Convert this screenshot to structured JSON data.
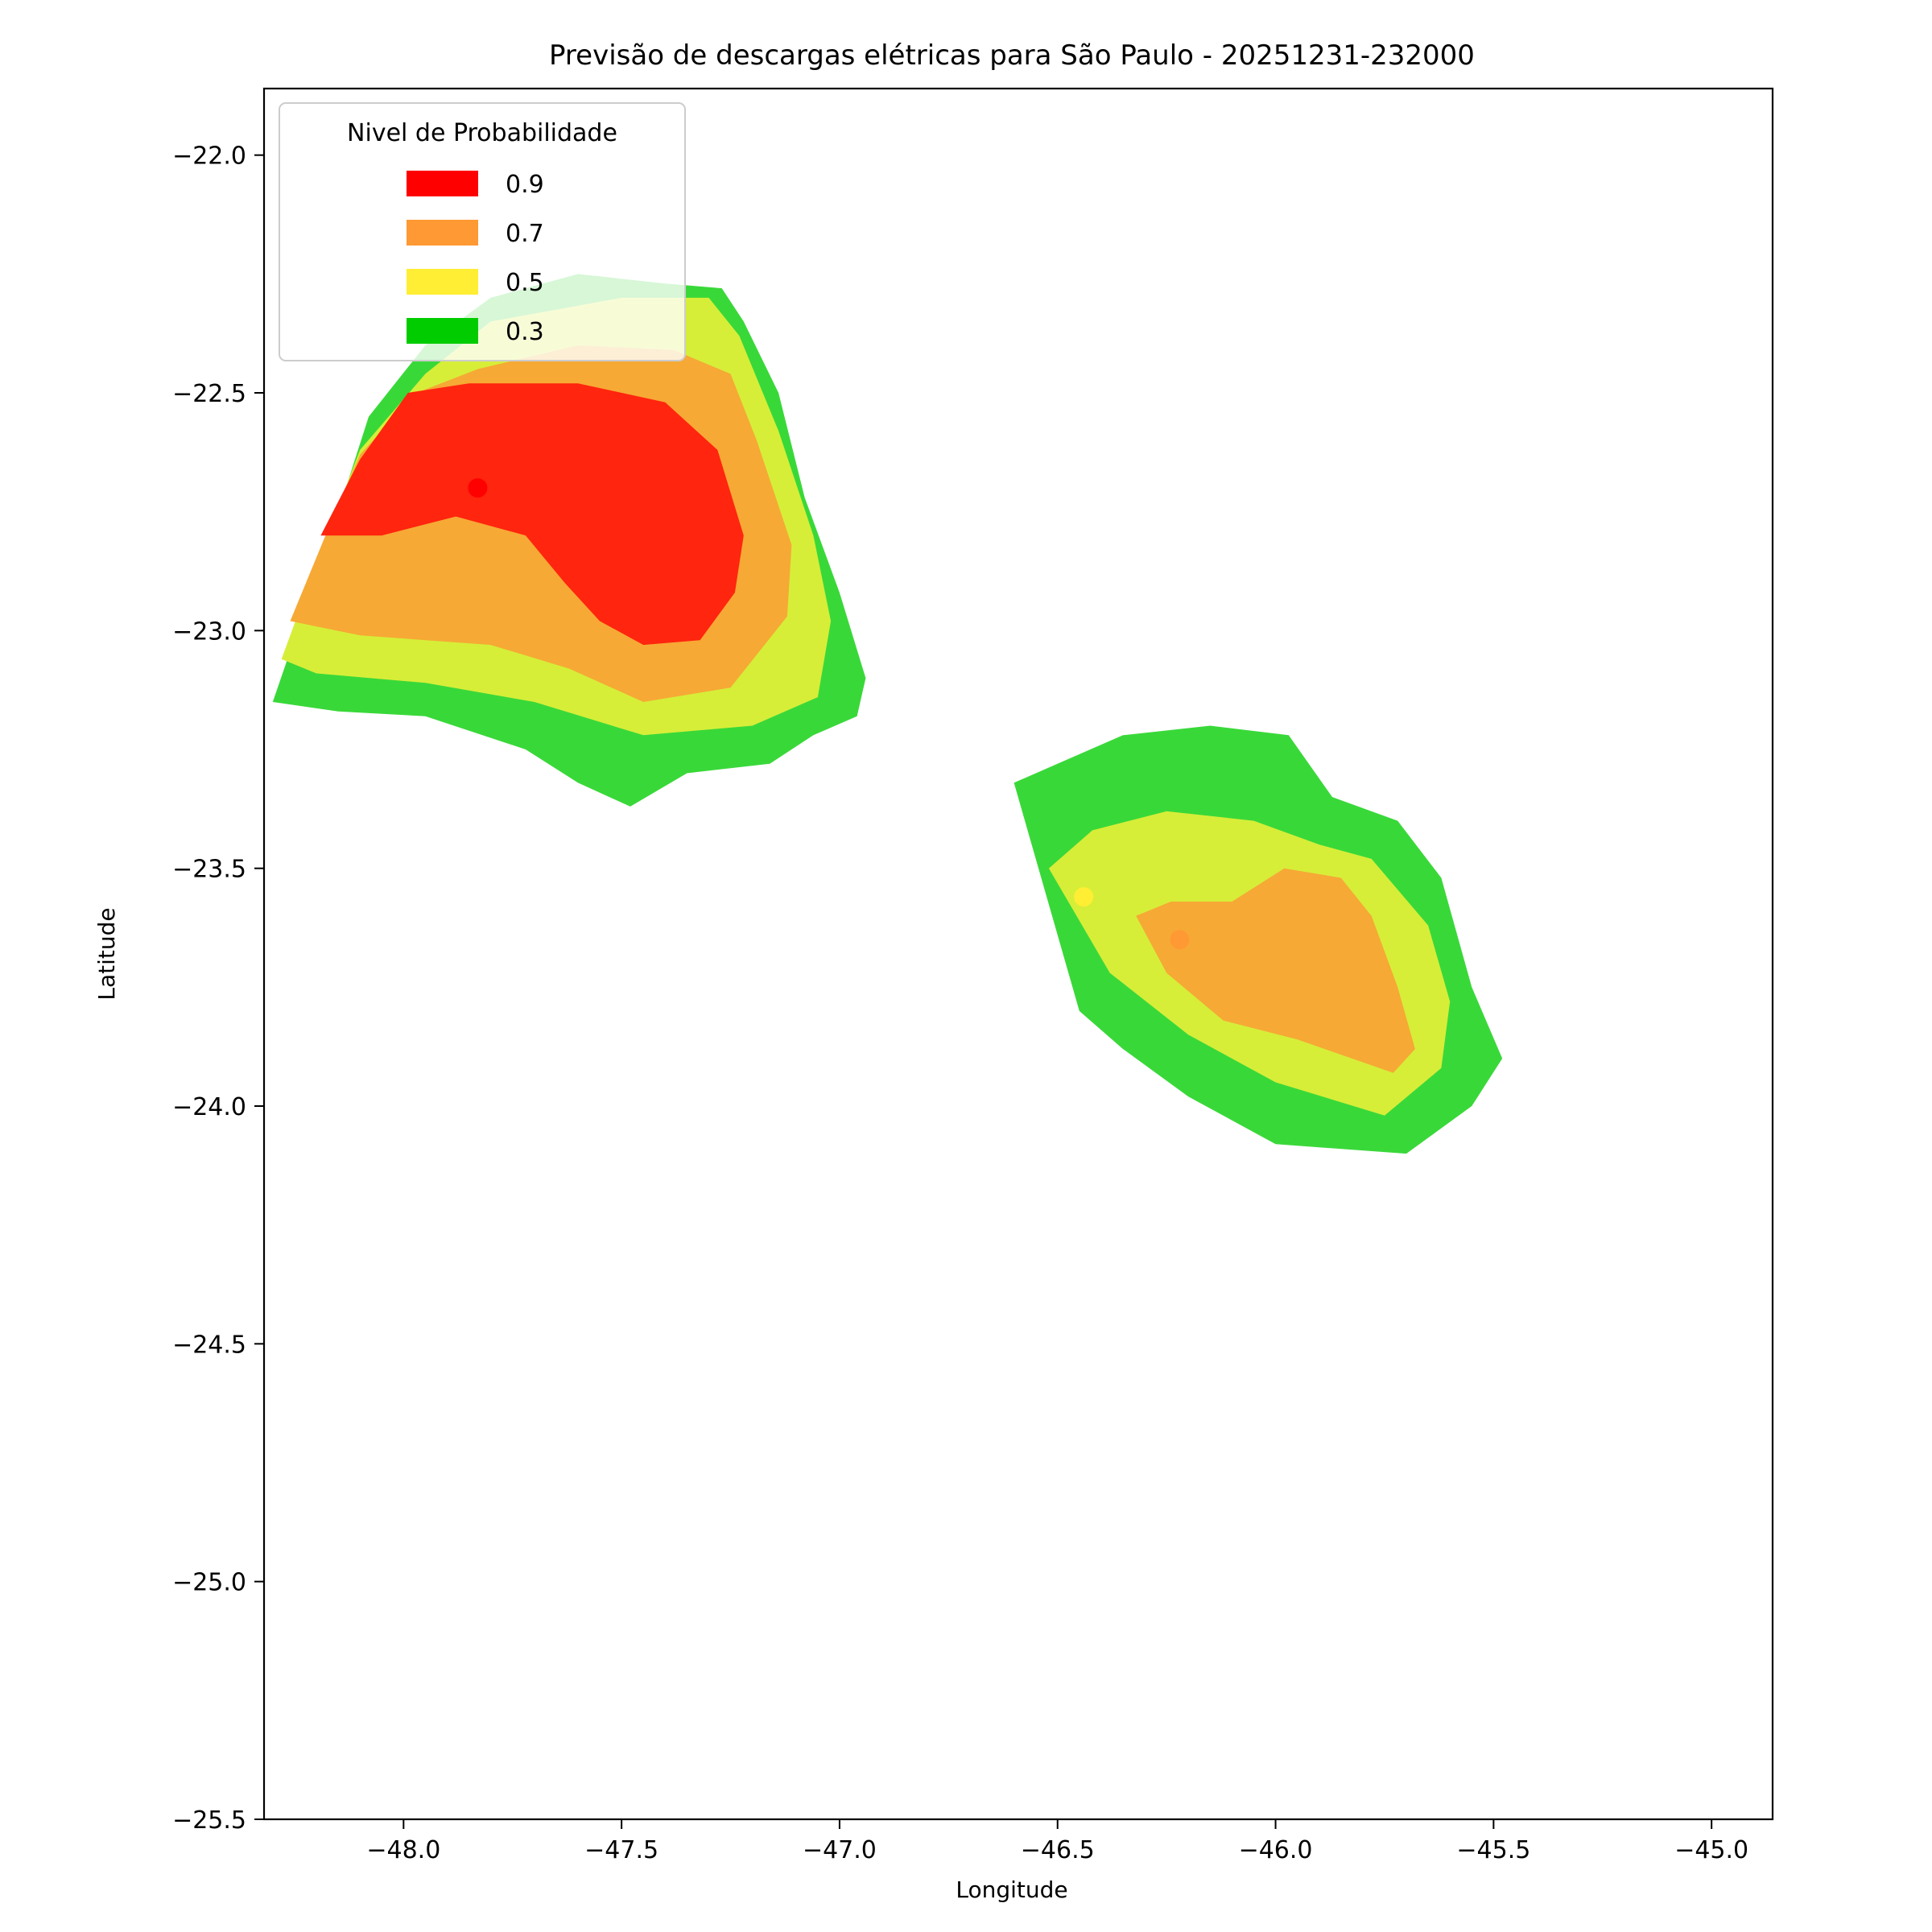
{
  "chart_data": {
    "type": "contour-map",
    "title": "Previsão de descargas elétricas para São Paulo - 20251231-232000",
    "xlabel": "Longitude",
    "ylabel": "Latitude",
    "xlim": [
      -48.32,
      -44.86
    ],
    "ylim": [
      -25.5,
      -21.86
    ],
    "x_ticks": [
      -48.0,
      -47.5,
      -47.0,
      -46.5,
      -46.0,
      -45.5,
      -45.0
    ],
    "x_tick_labels": [
      "−48.0",
      "−47.5",
      "−47.0",
      "−46.5",
      "−46.0",
      "−45.5",
      "−45.0"
    ],
    "y_ticks": [
      -22.0,
      -22.5,
      -23.0,
      -23.5,
      -24.0,
      -24.5,
      -25.0,
      -25.5
    ],
    "y_tick_labels": [
      "−22.0",
      "−22.5",
      "−23.0",
      "−23.5",
      "−24.0",
      "−24.5",
      "−25.0",
      "−25.5"
    ],
    "grid": false,
    "legend": {
      "title": "Nivel de Probabilidade",
      "placement": "top-left",
      "entries": [
        {
          "label": "0.9",
          "color": "#ff0000"
        },
        {
          "label": "0.7",
          "color": "#ff9933"
        },
        {
          "label": "0.5",
          "color": "#ffee33"
        },
        {
          "label": "0.3",
          "color": "#00cc00"
        }
      ]
    },
    "fill_colors": {
      "0.3": "#39d839",
      "0.5": "#d6ee38",
      "0.7": "#f6a935",
      "0.9": "#ff250e"
    },
    "cells": [
      {
        "name": "cell-northwest",
        "levels": [
          {
            "level": "0.3",
            "polygon": [
              [
                -48.3,
                -23.15
              ],
              [
                -48.15,
                -22.75
              ],
              [
                -48.08,
                -22.55
              ],
              [
                -47.95,
                -22.4
              ],
              [
                -47.8,
                -22.3
              ],
              [
                -47.6,
                -22.25
              ],
              [
                -47.4,
                -22.27
              ],
              [
                -47.27,
                -22.28
              ],
              [
                -47.22,
                -22.35
              ],
              [
                -47.14,
                -22.5
              ],
              [
                -47.08,
                -22.72
              ],
              [
                -47.0,
                -22.92
              ],
              [
                -46.94,
                -23.1
              ],
              [
                -46.96,
                -23.18
              ],
              [
                -47.06,
                -23.22
              ],
              [
                -47.16,
                -23.28
              ],
              [
                -47.35,
                -23.3
              ],
              [
                -47.48,
                -23.37
              ],
              [
                -47.6,
                -23.32
              ],
              [
                -47.72,
                -23.25
              ],
              [
                -47.95,
                -23.18
              ],
              [
                -48.15,
                -23.17
              ]
            ]
          },
          {
            "level": "0.5",
            "polygon": [
              [
                -48.28,
                -23.06
              ],
              [
                -48.2,
                -22.86
              ],
              [
                -48.1,
                -22.62
              ],
              [
                -47.95,
                -22.46
              ],
              [
                -47.8,
                -22.35
              ],
              [
                -47.5,
                -22.3
              ],
              [
                -47.3,
                -22.3
              ],
              [
                -47.23,
                -22.38
              ],
              [
                -47.14,
                -22.58
              ],
              [
                -47.06,
                -22.8
              ],
              [
                -47.02,
                -22.98
              ],
              [
                -47.05,
                -23.14
              ],
              [
                -47.2,
                -23.2
              ],
              [
                -47.45,
                -23.22
              ],
              [
                -47.7,
                -23.15
              ],
              [
                -47.95,
                -23.11
              ],
              [
                -48.2,
                -23.09
              ]
            ]
          },
          {
            "level": "0.7",
            "polygon": [
              [
                -48.26,
                -22.98
              ],
              [
                -48.17,
                -22.78
              ],
              [
                -48.1,
                -22.63
              ],
              [
                -47.97,
                -22.5
              ],
              [
                -47.83,
                -22.45
              ],
              [
                -47.6,
                -22.4
              ],
              [
                -47.38,
                -22.41
              ],
              [
                -47.25,
                -22.46
              ],
              [
                -47.19,
                -22.6
              ],
              [
                -47.11,
                -22.82
              ],
              [
                -47.12,
                -22.97
              ],
              [
                -47.25,
                -23.12
              ],
              [
                -47.45,
                -23.15
              ],
              [
                -47.62,
                -23.08
              ],
              [
                -47.8,
                -23.03
              ],
              [
                -48.1,
                -23.01
              ]
            ]
          },
          {
            "level": "0.9",
            "polygon": [
              [
                -48.19,
                -22.8
              ],
              [
                -48.1,
                -22.64
              ],
              [
                -47.99,
                -22.5
              ],
              [
                -47.85,
                -22.48
              ],
              [
                -47.6,
                -22.48
              ],
              [
                -47.4,
                -22.52
              ],
              [
                -47.28,
                -22.62
              ],
              [
                -47.22,
                -22.8
              ],
              [
                -47.24,
                -22.92
              ],
              [
                -47.32,
                -23.02
              ],
              [
                -47.45,
                -23.03
              ],
              [
                -47.55,
                -22.98
              ],
              [
                -47.63,
                -22.9
              ],
              [
                -47.72,
                -22.8
              ],
              [
                -47.88,
                -22.76
              ],
              [
                -48.05,
                -22.8
              ]
            ]
          }
        ]
      },
      {
        "name": "cell-southeast",
        "levels": [
          {
            "level": "0.3",
            "polygon": [
              [
                -46.6,
                -23.32
              ],
              [
                -46.5,
                -23.28
              ],
              [
                -46.35,
                -23.22
              ],
              [
                -46.15,
                -23.2
              ],
              [
                -45.97,
                -23.22
              ],
              [
                -45.87,
                -23.35
              ],
              [
                -45.72,
                -23.4
              ],
              [
                -45.62,
                -23.52
              ],
              [
                -45.55,
                -23.75
              ],
              [
                -45.48,
                -23.9
              ],
              [
                -45.55,
                -24.0
              ],
              [
                -45.7,
                -24.1
              ],
              [
                -46.0,
                -24.08
              ],
              [
                -46.2,
                -23.98
              ],
              [
                -46.35,
                -23.88
              ],
              [
                -46.45,
                -23.8
              ]
            ]
          },
          {
            "level": "0.5",
            "polygon": [
              [
                -46.52,
                -23.5
              ],
              [
                -46.42,
                -23.42
              ],
              [
                -46.25,
                -23.38
              ],
              [
                -46.05,
                -23.4
              ],
              [
                -45.9,
                -23.45
              ],
              [
                -45.78,
                -23.48
              ],
              [
                -45.65,
                -23.62
              ],
              [
                -45.6,
                -23.78
              ],
              [
                -45.62,
                -23.92
              ],
              [
                -45.75,
                -24.02
              ],
              [
                -46.0,
                -23.95
              ],
              [
                -46.2,
                -23.85
              ],
              [
                -46.38,
                -23.72
              ]
            ]
          },
          {
            "level": "0.7",
            "polygon": [
              [
                -46.32,
                -23.6
              ],
              [
                -46.24,
                -23.57
              ],
              [
                -46.1,
                -23.57
              ],
              [
                -45.98,
                -23.5
              ],
              [
                -45.85,
                -23.52
              ],
              [
                -45.78,
                -23.6
              ],
              [
                -45.72,
                -23.75
              ],
              [
                -45.68,
                -23.88
              ],
              [
                -45.73,
                -23.93
              ],
              [
                -45.95,
                -23.86
              ],
              [
                -46.12,
                -23.82
              ],
              [
                -46.25,
                -23.72
              ]
            ]
          }
        ]
      }
    ],
    "markers": [
      {
        "lon": -47.83,
        "lat": -22.7,
        "color": "#ff0000"
      },
      {
        "lon": -46.44,
        "lat": -23.56,
        "color": "#ffee33"
      },
      {
        "lon": -46.22,
        "lat": -23.65,
        "color": "#ff9933"
      }
    ]
  }
}
